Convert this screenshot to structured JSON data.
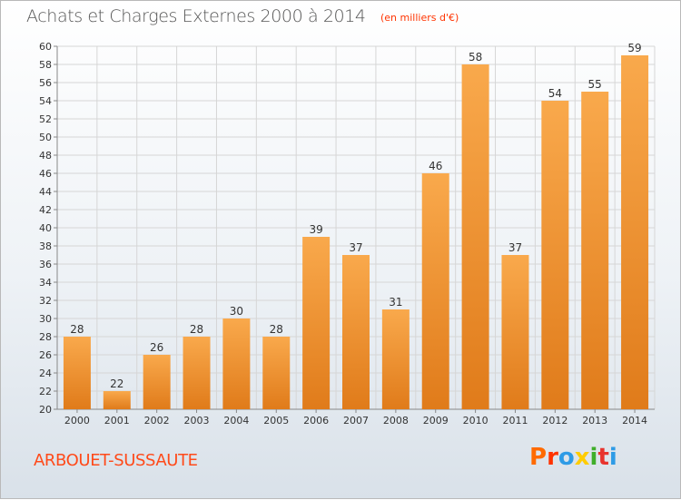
{
  "header": {
    "title": "Achats et Charges Externes 2000 à 2014",
    "subtitle": "(en milliers d'€)"
  },
  "footer": {
    "commune": "ARBOUET-SUSSAUTE",
    "logo_text": "Proxiti",
    "logo_colors": [
      "#ff6a00",
      "#ff3300",
      "#2e9be6",
      "#ffcc00",
      "#3fae2a",
      "#e8332d",
      "#2e9be6"
    ]
  },
  "colors": {
    "bar_light": "#f9a94c",
    "bar_dark": "#e07b1a",
    "grid": "#d6d6d6"
  },
  "chart_data": {
    "type": "bar",
    "title": "Achats et Charges Externes 2000 à 2014",
    "subtitle": "(en milliers d'€)",
    "categories": [
      "2000",
      "2001",
      "2002",
      "2003",
      "2004",
      "2005",
      "2006",
      "2007",
      "2008",
      "2009",
      "2010",
      "2011",
      "2012",
      "2013",
      "2014"
    ],
    "values": [
      28,
      22,
      26,
      28,
      30,
      28,
      39,
      37,
      31,
      46,
      58,
      37,
      54,
      55,
      59
    ],
    "ylim": [
      20,
      60
    ],
    "yticks": [
      20,
      22,
      24,
      26,
      28,
      30,
      32,
      34,
      36,
      38,
      40,
      42,
      44,
      46,
      48,
      50,
      52,
      54,
      56,
      58,
      60
    ],
    "grid": true,
    "xlabel": "",
    "ylabel": ""
  }
}
